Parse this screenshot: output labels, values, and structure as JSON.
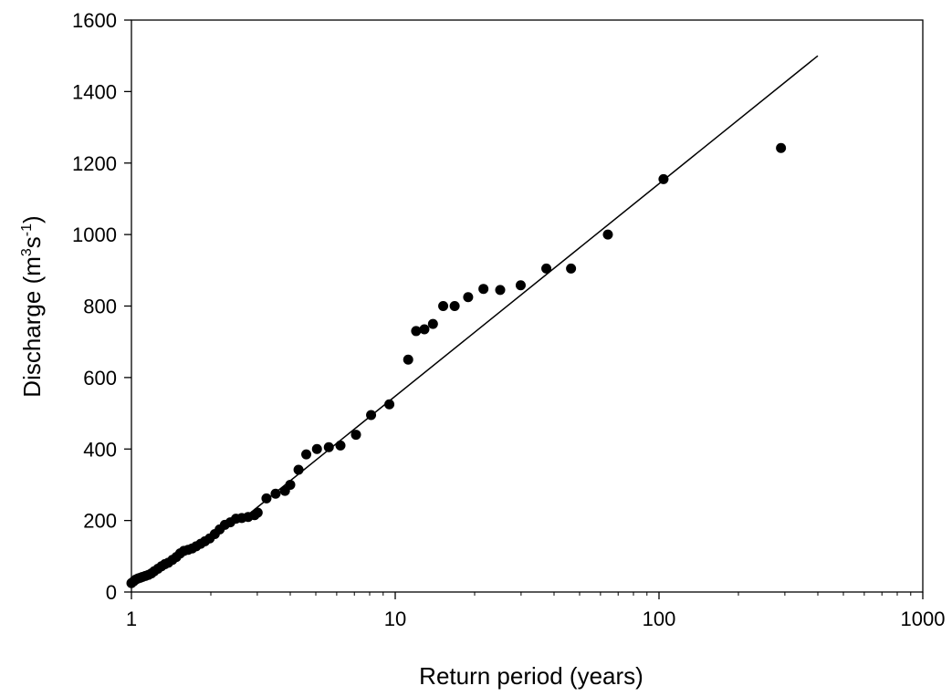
{
  "chart_data": {
    "type": "scatter",
    "title": "",
    "xlabel": "Return period (years)",
    "ylabel": {
      "text_before": "Discharge (m",
      "sup1": "3",
      "text_mid": "s",
      "sup2": "-1",
      "text_after": ")"
    },
    "x_scale": "log",
    "xlim": [
      1,
      1000
    ],
    "ylim": [
      0,
      1600
    ],
    "x_ticks": [
      {
        "value": 1,
        "label": "1"
      },
      {
        "value": 10,
        "label": "10"
      },
      {
        "value": 100,
        "label": "100"
      },
      {
        "value": 1000,
        "label": "1000"
      }
    ],
    "y_ticks": [
      {
        "value": 0,
        "label": "0"
      },
      {
        "value": 200,
        "label": "200"
      },
      {
        "value": 400,
        "label": "400"
      },
      {
        "value": 600,
        "label": "600"
      },
      {
        "value": 800,
        "label": "800"
      },
      {
        "value": 1000,
        "label": "1000"
      },
      {
        "value": 1200,
        "label": "1200"
      },
      {
        "value": 1400,
        "label": "1400"
      },
      {
        "value": 1600,
        "label": "1600"
      }
    ],
    "grid": false,
    "legend": "none",
    "series": [
      {
        "kind": "points",
        "color": "#000000",
        "points": [
          [
            1.0,
            25
          ],
          [
            1.02,
            30
          ],
          [
            1.04,
            35
          ],
          [
            1.06,
            38
          ],
          [
            1.08,
            40
          ],
          [
            1.1,
            42
          ],
          [
            1.13,
            45
          ],
          [
            1.16,
            48
          ],
          [
            1.19,
            52
          ],
          [
            1.22,
            58
          ],
          [
            1.26,
            65
          ],
          [
            1.3,
            72
          ],
          [
            1.34,
            78
          ],
          [
            1.38,
            82
          ],
          [
            1.43,
            90
          ],
          [
            1.48,
            98
          ],
          [
            1.53,
            108
          ],
          [
            1.58,
            115
          ],
          [
            1.64,
            118
          ],
          [
            1.7,
            122
          ],
          [
            1.76,
            128
          ],
          [
            1.83,
            135
          ],
          [
            1.9,
            142
          ],
          [
            1.98,
            150
          ],
          [
            2.07,
            162
          ],
          [
            2.16,
            175
          ],
          [
            2.26,
            188
          ],
          [
            2.37,
            195
          ],
          [
            2.49,
            205
          ],
          [
            2.62,
            207
          ],
          [
            2.77,
            210
          ],
          [
            2.93,
            215
          ],
          [
            3.01,
            222
          ],
          [
            3.25,
            262
          ],
          [
            3.52,
            275
          ],
          [
            3.82,
            283
          ],
          [
            4.0,
            300
          ],
          [
            4.3,
            342
          ],
          [
            4.6,
            385
          ],
          [
            5.05,
            400
          ],
          [
            5.6,
            405
          ],
          [
            6.2,
            410
          ],
          [
            7.1,
            440
          ],
          [
            8.1,
            495
          ],
          [
            9.5,
            525
          ],
          [
            11.2,
            650
          ],
          [
            12.0,
            730
          ],
          [
            12.9,
            735
          ],
          [
            13.9,
            750
          ],
          [
            15.2,
            800
          ],
          [
            16.8,
            800
          ],
          [
            18.9,
            825
          ],
          [
            21.6,
            848
          ],
          [
            25.0,
            845
          ],
          [
            29.9,
            858
          ],
          [
            37.4,
            905
          ],
          [
            46.4,
            905
          ],
          [
            64.0,
            1000
          ],
          [
            104,
            1155
          ],
          [
            290,
            1242
          ]
        ]
      },
      {
        "kind": "fit-line",
        "color": "#000000",
        "points": [
          [
            2.6,
            200
          ],
          [
            400,
            1500
          ]
        ]
      }
    ]
  }
}
